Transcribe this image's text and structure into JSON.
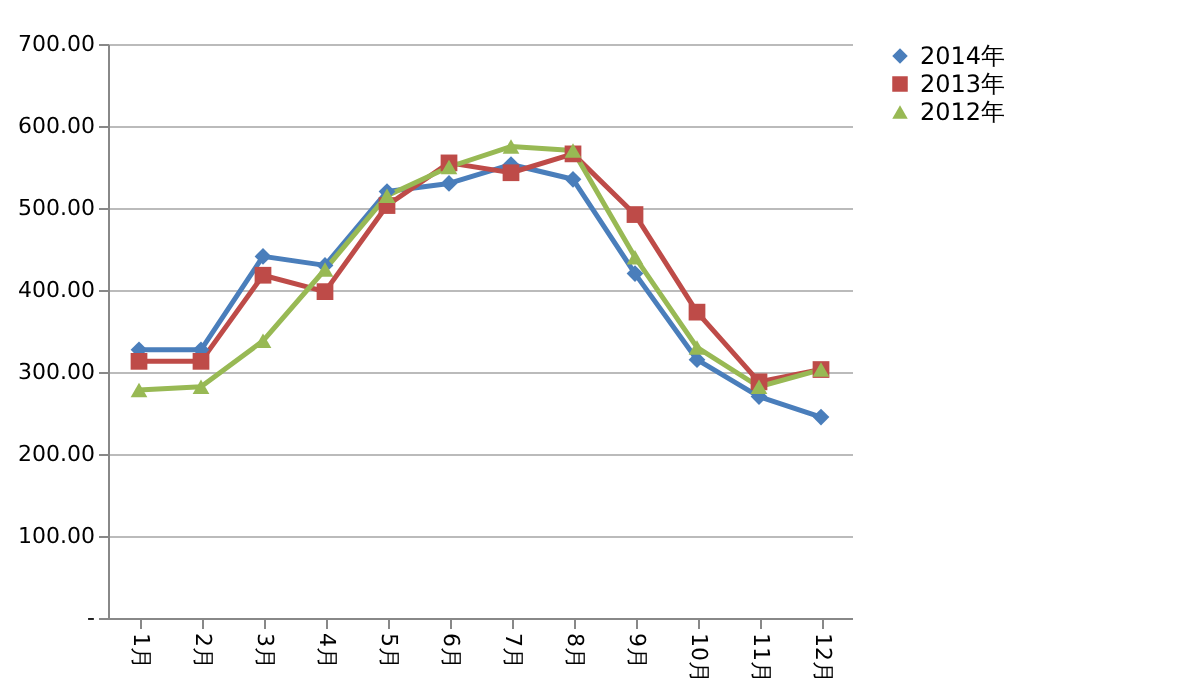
{
  "chart_data": {
    "type": "line",
    "categories": [
      "1月",
      "2月",
      "3月",
      "4月",
      "5月",
      "6月",
      "7月",
      "8月",
      "9月",
      "10月",
      "11月",
      "12月"
    ],
    "series": [
      {
        "name": "2014年",
        "color": "#4a7ebb",
        "marker": "diamond",
        "values": [
          327,
          327,
          441,
          430,
          520,
          530,
          553,
          535,
          420,
          315,
          270,
          245
        ]
      },
      {
        "name": "2013年",
        "color": "#be4b48",
        "marker": "square",
        "values": [
          313,
          313,
          418,
          398,
          503,
          555,
          543,
          566,
          492,
          373,
          288,
          303
        ]
      },
      {
        "name": "2012年",
        "color": "#98b954",
        "marker": "triangle",
        "values": [
          278,
          282,
          338,
          425,
          515,
          550,
          575,
          570,
          440,
          330,
          282,
          303
        ]
      }
    ],
    "ylim": [
      0,
      700
    ],
    "yticks": [
      {
        "value": 0,
        "label": "-"
      },
      {
        "value": 100,
        "label": "100.00"
      },
      {
        "value": 200,
        "label": "200.00"
      },
      {
        "value": 300,
        "label": "300.00"
      },
      {
        "value": 400,
        "label": "400.00"
      },
      {
        "value": 500,
        "label": "500.00"
      },
      {
        "value": 600,
        "label": "600.00"
      },
      {
        "value": 700,
        "label": "700.00"
      }
    ],
    "grid": "y",
    "legend": "right"
  }
}
